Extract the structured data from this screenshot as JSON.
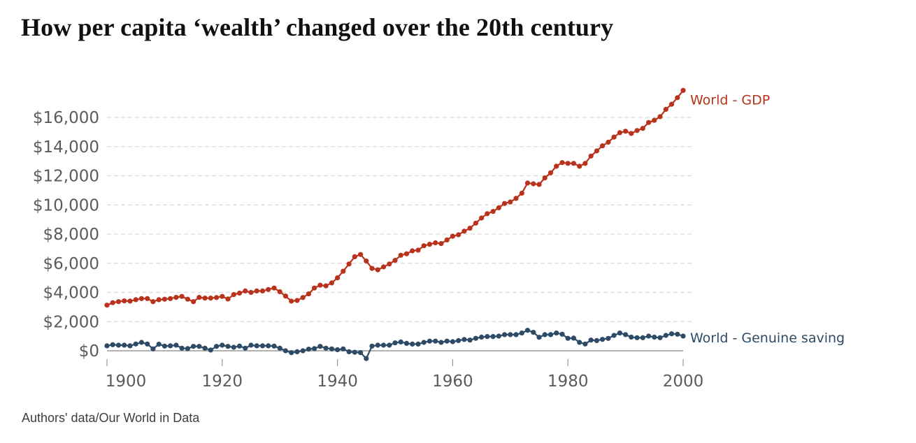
{
  "title": "How per capita ‘wealth’ changed over the 20th century",
  "source": "Authors' data/Our World in Data",
  "chart_data": {
    "type": "line",
    "title": "How per capita ‘wealth’ changed over the 20th century",
    "xlabel": "",
    "ylabel": "",
    "xlim": [
      1900,
      2000
    ],
    "ylim": [
      0,
      16000
    ],
    "grid": true,
    "legend": "inline-right",
    "x_ticks": [
      1900,
      1920,
      1940,
      1960,
      1980,
      2000
    ],
    "x_tick_labels": [
      "1900",
      "1920",
      "1940",
      "1960",
      "1980",
      "2000"
    ],
    "y_ticks": [
      0,
      2000,
      4000,
      6000,
      8000,
      10000,
      12000,
      14000,
      16000
    ],
    "y_tick_labels": [
      "$0",
      "$2,000",
      "$4,000",
      "$6,000",
      "$8,000",
      "$10,000",
      "$12,000",
      "$14,000",
      "$16,000"
    ],
    "x_start": 1900,
    "series": [
      {
        "name": "World - GDP",
        "color": "#b8321c",
        "values": [
          3130,
          3295,
          3370,
          3420,
          3405,
          3500,
          3580,
          3580,
          3370,
          3500,
          3535,
          3580,
          3660,
          3725,
          3535,
          3370,
          3660,
          3610,
          3610,
          3650,
          3725,
          3550,
          3850,
          3950,
          4100,
          4000,
          4100,
          4100,
          4200,
          4300,
          4050,
          3750,
          3400,
          3450,
          3650,
          3900,
          4300,
          4500,
          4450,
          4650,
          5000,
          5450,
          5950,
          6450,
          6600,
          6150,
          5650,
          5550,
          5750,
          5950,
          6200,
          6550,
          6650,
          6850,
          6900,
          7200,
          7300,
          7400,
          7350,
          7600,
          7850,
          7950,
          8200,
          8400,
          8750,
          9100,
          9400,
          9550,
          9800,
          10100,
          10200,
          10450,
          10800,
          11500,
          11450,
          11400,
          11850,
          12200,
          12650,
          12900,
          12850,
          12850,
          12650,
          12850,
          13350,
          13700,
          14050,
          14300,
          14650,
          14950,
          15050,
          14900,
          15100,
          15250,
          15650,
          15800,
          16050,
          16550,
          16900,
          17350,
          17850
        ]
      },
      {
        "name": "World - Genuine saving",
        "color": "#2d4a66",
        "values": [
          340,
          415,
          385,
          385,
          340,
          465,
          575,
          465,
          130,
          450,
          320,
          340,
          385,
          175,
          150,
          300,
          300,
          175,
          50,
          300,
          385,
          300,
          240,
          320,
          175,
          385,
          340,
          340,
          340,
          320,
          175,
          0,
          -130,
          -65,
          0,
          110,
          150,
          300,
          175,
          130,
          70,
          130,
          -65,
          -100,
          -130,
          -530,
          320,
          385,
          385,
          385,
          540,
          605,
          510,
          460,
          460,
          575,
          660,
          660,
          575,
          660,
          625,
          700,
          775,
          735,
          855,
          935,
          975,
          975,
          1005,
          1105,
          1105,
          1105,
          1215,
          1405,
          1265,
          925,
          1105,
          1105,
          1215,
          1135,
          855,
          865,
          575,
          465,
          735,
          700,
          780,
          850,
          1055,
          1215,
          1105,
          935,
          895,
          895,
          1005,
          935,
          895,
          1055,
          1165,
          1135,
          1005
        ]
      }
    ]
  }
}
